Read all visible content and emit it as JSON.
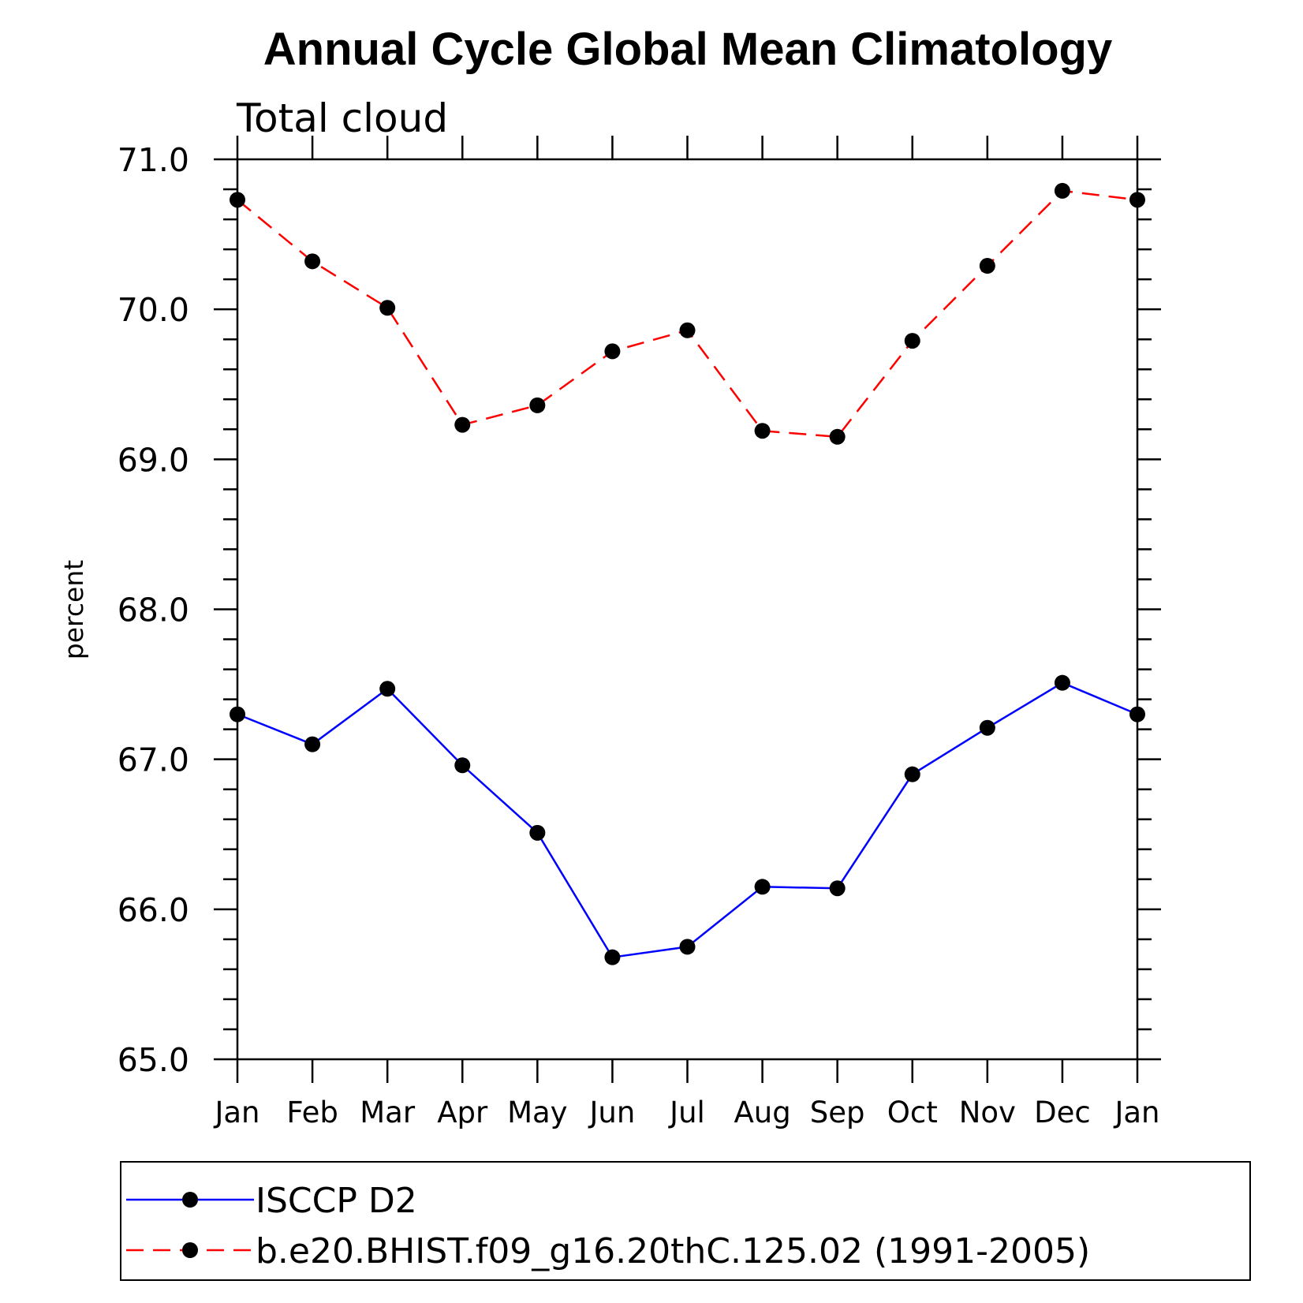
{
  "chart_data": {
    "type": "line",
    "title": "Annual Cycle Global Mean Climatology",
    "subtitle": "Total cloud",
    "xlabel": "",
    "ylabel": "percent",
    "categories": [
      "Jan",
      "Feb",
      "Mar",
      "Apr",
      "May",
      "Jun",
      "Jul",
      "Aug",
      "Sep",
      "Oct",
      "Nov",
      "Dec",
      "Jan"
    ],
    "ylim": [
      65.0,
      71.0
    ],
    "yticks": [
      "65.0",
      "66.0",
      "67.0",
      "68.0",
      "69.0",
      "70.0",
      "71.0"
    ],
    "grid": false,
    "legend_position": "bottom",
    "series": [
      {
        "name": "ISCCP D2",
        "color": "#0000ff",
        "line_style": "solid",
        "marker": "filled-circle",
        "values": [
          67.3,
          67.1,
          67.47,
          66.96,
          66.51,
          65.68,
          65.75,
          66.15,
          66.14,
          66.9,
          67.21,
          67.51,
          67.3
        ]
      },
      {
        "name": "b.e20.BHIST.f09_g16.20thC.125.02 (1991-2005)",
        "color": "#ff0000",
        "line_style": "dashed",
        "marker": "filled-circle",
        "values": [
          70.73,
          70.32,
          70.01,
          69.23,
          69.36,
          69.72,
          69.86,
          69.19,
          69.15,
          69.79,
          70.29,
          70.79,
          70.73
        ]
      }
    ]
  }
}
